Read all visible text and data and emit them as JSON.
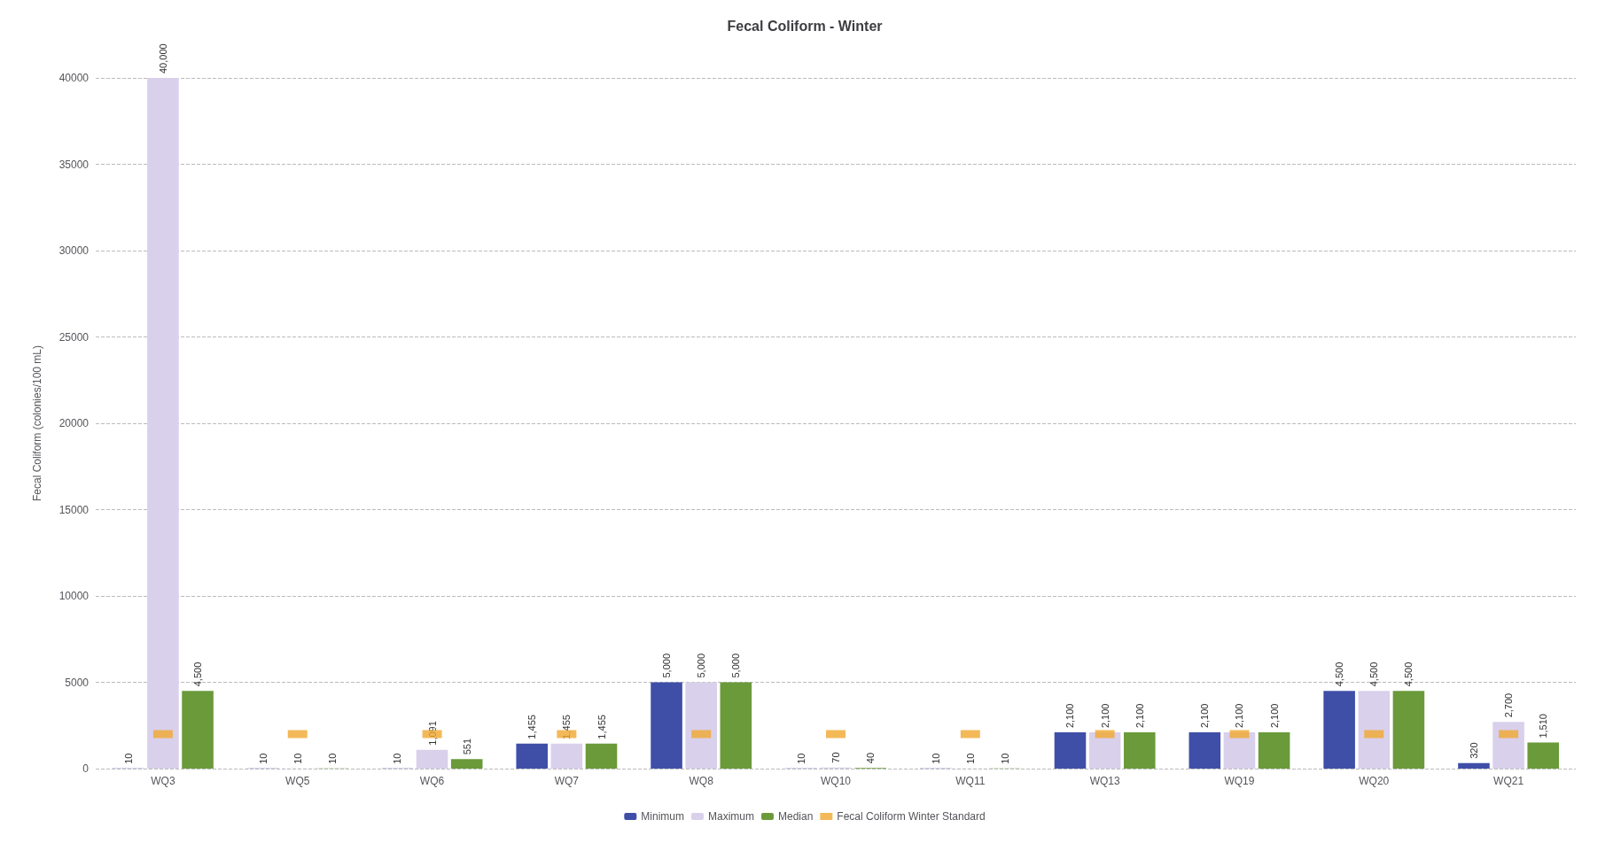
{
  "chart_data": {
    "type": "bar",
    "title": "Fecal Coliform - Winter",
    "ylabel": "Fecal Coliform (colonies/100 mL)",
    "categories": [
      "WQ3",
      "WQ5",
      "WQ6",
      "WQ7",
      "WQ8",
      "WQ10",
      "WQ11",
      "WQ13",
      "WQ19",
      "WQ20",
      "WQ21"
    ],
    "series": [
      {
        "name": "Minimum",
        "color": "#3f4fa8",
        "values": [
          10,
          10,
          10,
          1455,
          5000,
          10,
          10,
          2100,
          2100,
          4500,
          320
        ],
        "value_labels": [
          "10",
          "10",
          "10",
          "1,455",
          "5,000",
          "10",
          "10",
          "2,100",
          "2,100",
          "4,500",
          "320"
        ]
      },
      {
        "name": "Maximum",
        "color": "#d9d0ec",
        "values": [
          40000,
          10,
          1091,
          1455,
          5000,
          70,
          10,
          2100,
          2100,
          4500,
          2700
        ],
        "value_labels": [
          "40,000",
          "10",
          "1,091",
          "1,455",
          "5,000",
          "70",
          "10",
          "2,100",
          "2,100",
          "4,500",
          "2,700"
        ]
      },
      {
        "name": "Median",
        "color": "#6a9a3a",
        "values": [
          4500,
          10,
          551,
          1455,
          5000,
          40,
          10,
          2100,
          2100,
          4500,
          1510
        ],
        "value_labels": [
          "4,500",
          "10",
          "551",
          "1,455",
          "5,000",
          "40",
          "10",
          "2,100",
          "2,100",
          "4,500",
          "1,510"
        ]
      },
      {
        "name": "Fecal Coliform Winter Standard",
        "type": "scatter",
        "color": "#f0a830",
        "values": [
          2000,
          2000,
          2000,
          2000,
          2000,
          2000,
          2000,
          2000,
          2000,
          2000,
          2000
        ]
      }
    ],
    "ylim": [
      0,
      40000
    ],
    "yticks": [
      0,
      5000,
      10000,
      15000,
      20000,
      25000,
      30000,
      35000,
      40000
    ],
    "grid": "y",
    "legend": "bottom"
  }
}
